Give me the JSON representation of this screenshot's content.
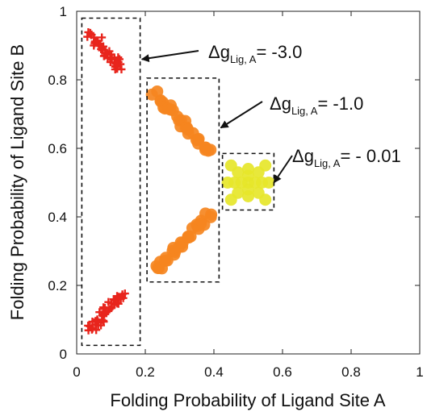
{
  "chart_data": {
    "type": "scatter",
    "xlabel": "Folding Probability of Ligand Site A",
    "ylabel": "Folding Probability of Ligand Site B",
    "xlim": [
      0,
      1
    ],
    "ylim": [
      0,
      1
    ],
    "xticks": [
      "0",
      "0.2",
      "0.4",
      "0.6",
      "0.8",
      "1"
    ],
    "yticks": [
      "0",
      "0.2",
      "0.4",
      "0.6",
      "0.8",
      "1"
    ],
    "grid": false,
    "legend": "none",
    "series": [
      {
        "color": "#e8251c",
        "marker": "plus",
        "clusters": [
          {
            "from": [
              0.04,
              0.935
            ],
            "to": [
              0.13,
              0.83
            ],
            "count": 48,
            "spread": 0.014
          },
          {
            "from": [
              0.04,
              0.07
            ],
            "to": [
              0.13,
              0.17
            ],
            "count": 48,
            "spread": 0.014
          }
        ]
      },
      {
        "color": "#f5851f",
        "marker": "circle",
        "clusters": [
          {
            "from": [
              0.23,
              0.76
            ],
            "to": [
              0.39,
              0.59
            ],
            "count": 30,
            "spread": 0.012
          },
          {
            "from": [
              0.23,
              0.24
            ],
            "to": [
              0.39,
              0.41
            ],
            "count": 30,
            "spread": 0.012
          }
        ]
      },
      {
        "color": "#e6e62a",
        "marker": "circle",
        "points": [
          [
            0.5,
            0.5
          ],
          [
            0.47,
            0.47
          ],
          [
            0.53,
            0.53
          ],
          [
            0.47,
            0.53
          ],
          [
            0.53,
            0.47
          ],
          [
            0.45,
            0.45
          ],
          [
            0.55,
            0.55
          ],
          [
            0.45,
            0.55
          ],
          [
            0.55,
            0.45
          ],
          [
            0.5,
            0.46
          ],
          [
            0.5,
            0.54
          ],
          [
            0.46,
            0.5
          ],
          [
            0.54,
            0.5
          ],
          [
            0.48,
            0.5
          ],
          [
            0.52,
            0.5
          ],
          [
            0.5,
            0.48
          ],
          [
            0.5,
            0.52
          ],
          [
            0.44,
            0.5
          ],
          [
            0.56,
            0.5
          ]
        ]
      }
    ],
    "annotations": [
      {
        "main": "Δg",
        "sub": "Lig, A",
        "value": "= -3.0",
        "box": {
          "x": [
            0.015,
            0.185
          ],
          "y": [
            0.025,
            0.98
          ]
        },
        "arrow_to": [
          0.19,
          0.86
        ]
      },
      {
        "main": "Δg",
        "sub": "Lig, A",
        "value": "= -1.0",
        "box": {
          "x": [
            0.205,
            0.415
          ],
          "y": [
            0.21,
            0.805
          ]
        },
        "arrow_to": [
          0.42,
          0.66
        ]
      },
      {
        "main": "Δg",
        "sub": "Lig, A",
        "value": "= - 0.01",
        "box": {
          "x": [
            0.425,
            0.575
          ],
          "y": [
            0.42,
            0.585
          ]
        },
        "arrow_to": [
          0.575,
          0.5
        ]
      }
    ]
  }
}
